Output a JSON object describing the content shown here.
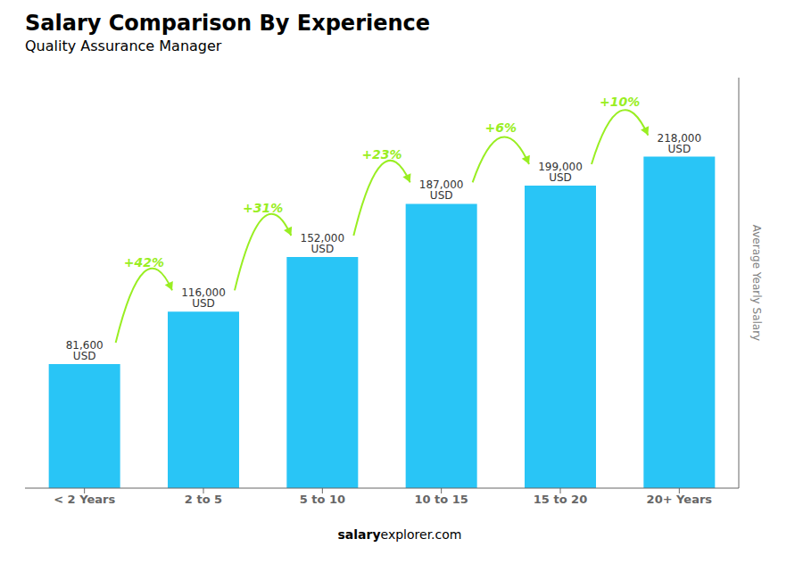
{
  "chart_data": {
    "type": "bar",
    "title": "Salary Comparison By Experience",
    "subtitle": "Quality Assurance Manager",
    "categories": [
      "< 2 Years",
      "2 to 5",
      "5 to 10",
      "10 to 15",
      "15 to 20",
      "20+ Years"
    ],
    "values": [
      81600,
      116000,
      152000,
      187000,
      199000,
      218000
    ],
    "value_labels": [
      "81,600 USD",
      "116,000 USD",
      "152,000 USD",
      "187,000 USD",
      "199,000 USD",
      "218,000 USD"
    ],
    "data_labels": true,
    "color": "#29c5f6",
    "ylim": [
      0,
      270000
    ],
    "yticks": [],
    "tick_labels": "x",
    "ylabel": "Average Yearly Salary",
    "annotations": [
      {
        "text": "+42%",
        "color": "#99ee22"
      },
      {
        "text": "+31%",
        "color": "#99ee22"
      },
      {
        "text": "+23%",
        "color": "#99ee22"
      },
      {
        "text": "+6%",
        "color": "#99ee22"
      },
      {
        "text": "+10%",
        "color": "#99ee22"
      }
    ],
    "footer": [
      "salary",
      "explorer.com"
    ]
  }
}
